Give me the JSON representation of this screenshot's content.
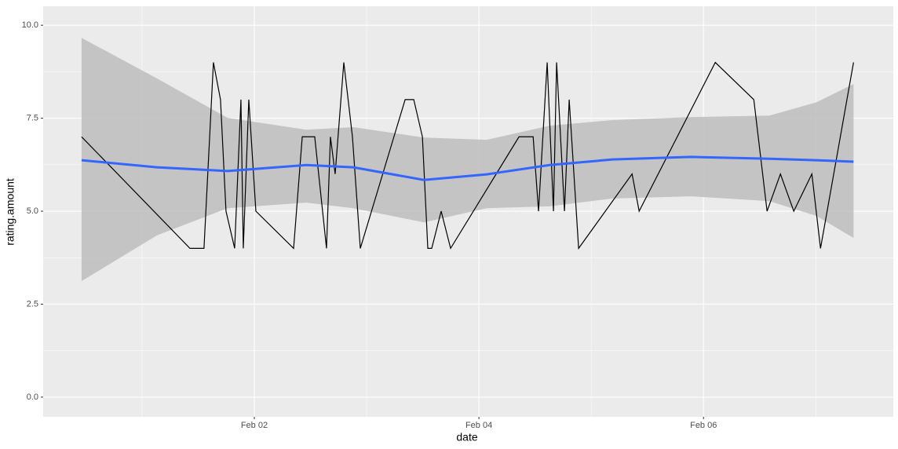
{
  "chart_data": {
    "type": "line",
    "xlabel": "date",
    "ylabel": "rating.amount",
    "xlim": [
      0.12,
      7.69
    ],
    "ylim": [
      -0.53,
      10.51
    ],
    "xticks": [
      {
        "value": 2,
        "label": "Feb 02"
      },
      {
        "value": 4,
        "label": "Feb 04"
      },
      {
        "value": 6,
        "label": "Feb 06"
      }
    ],
    "xminor": [
      1,
      3,
      5,
      7
    ],
    "yticks": [
      {
        "value": 0,
        "label": "0.0"
      },
      {
        "value": 2.5,
        "label": "2.5"
      },
      {
        "value": 5,
        "label": "5.0"
      },
      {
        "value": 7.5,
        "label": "7.5"
      },
      {
        "value": 10,
        "label": "10.0"
      }
    ],
    "yminor": [
      1.25,
      3.75,
      6.25,
      8.75
    ],
    "grid": true,
    "color": "#000000",
    "x": [
      0.462,
      1.427,
      1.552,
      1.636,
      1.699,
      1.748,
      1.825,
      1.881,
      1.902,
      1.951,
      2.014,
      2.35,
      2.427,
      2.538,
      2.643,
      2.678,
      2.72,
      2.797,
      2.874,
      2.944,
      3.343,
      3.42,
      3.497,
      3.545,
      3.58,
      3.664,
      3.748,
      4.357,
      4.483,
      4.531,
      4.608,
      4.664,
      4.692,
      4.762,
      4.804,
      4.888,
      5.364,
      5.427,
      6.105,
      6.448,
      6.566,
      6.685,
      6.804,
      6.965,
      7.042,
      7.336
    ],
    "values": [
      7,
      4,
      4,
      9,
      8,
      5,
      4,
      8,
      4,
      8,
      5,
      4,
      7,
      7,
      4,
      7,
      6,
      9,
      7,
      4,
      8,
      8,
      7,
      4,
      4,
      5,
      4,
      7,
      7,
      5,
      9,
      5,
      9,
      5,
      8,
      4,
      6,
      5,
      9,
      8,
      5,
      6,
      5,
      6,
      4,
      9
    ],
    "smooth": {
      "color": "#3366ff",
      "band_color": "#bdbdbd",
      "x": [
        0.462,
        1.133,
        1.762,
        2.462,
        2.881,
        3.51,
        4.07,
        4.629,
        5.189,
        5.888,
        6.587,
        7.007,
        7.336
      ],
      "values": [
        6.37,
        6.18,
        6.08,
        6.24,
        6.18,
        5.84,
        5.99,
        6.24,
        6.39,
        6.46,
        6.41,
        6.37,
        6.33
      ],
      "lower": [
        3.12,
        4.35,
        5.08,
        5.23,
        5.08,
        4.7,
        5.08,
        5.13,
        5.34,
        5.4,
        5.27,
        4.87,
        4.28
      ],
      "upper": [
        9.66,
        8.57,
        7.51,
        7.19,
        7.26,
        6.98,
        6.92,
        7.3,
        7.45,
        7.53,
        7.57,
        7.93,
        8.42
      ]
    }
  }
}
